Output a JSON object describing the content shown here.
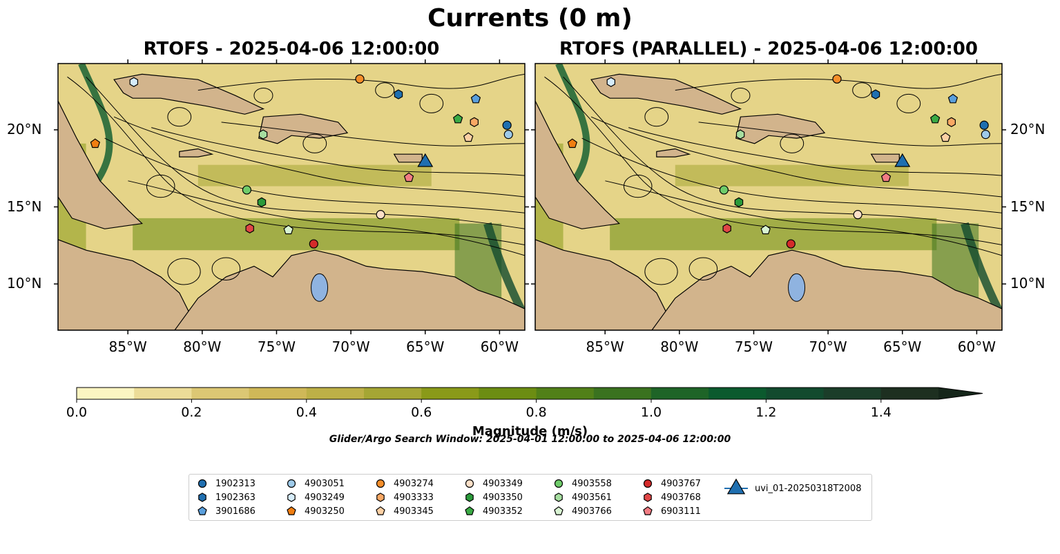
{
  "title": "Currents (0 m)",
  "panels": [
    {
      "title": "RTOFS - 2025-04-06 12:00:00"
    },
    {
      "title": "RTOFS (PARALLEL) - 2025-04-06 12:00:00"
    }
  ],
  "axes": {
    "lon_ticks": [
      "85°W",
      "80°W",
      "75°W",
      "70°W",
      "65°W",
      "60°W"
    ],
    "lat_ticks": [
      "20°N",
      "15°N",
      "10°N"
    ],
    "lon_values": [
      -85,
      -80,
      -75,
      -70,
      -65,
      -60
    ],
    "lat_values": [
      20,
      15,
      10
    ],
    "lon_range": [
      -89.7,
      -58.3
    ],
    "lat_range": [
      7.0,
      24.3
    ]
  },
  "colorbar": {
    "label": "Magnitude (m/s)",
    "ticks": [
      "0.0",
      "0.2",
      "0.4",
      "0.6",
      "0.8",
      "1.0",
      "1.2",
      "1.4"
    ],
    "tick_values": [
      0.0,
      0.2,
      0.4,
      0.6,
      0.8,
      1.0,
      1.2,
      1.4
    ],
    "range": [
      0,
      1.5
    ],
    "extend": "max",
    "colors": [
      "#fbf5c2",
      "#ecdc98",
      "#dcc774",
      "#cfb858",
      "#bdb047",
      "#a5a634",
      "#8a9a19",
      "#6c8d12",
      "#518018",
      "#3a721f",
      "#1e6427",
      "#0b5a2e",
      "#124a2e",
      "#1b3d29",
      "#1d2f20"
    ]
  },
  "search_window": "Glider/Argo Search Window: 2025-04-01 12:00:00 to 2025-04-06 12:00:00",
  "legend": [
    {
      "label": "1902313",
      "marker": "circle",
      "color": "#1f6fb0"
    },
    {
      "label": "1902363",
      "marker": "hexagon",
      "color": "#1f6fb0"
    },
    {
      "label": "3901686",
      "marker": "pentagon",
      "color": "#5a9fdc"
    },
    {
      "label": "4903051",
      "marker": "circle",
      "color": "#9ecae9"
    },
    {
      "label": "4903249",
      "marker": "hexagon",
      "color": "#d6ecfa"
    },
    {
      "label": "4903250",
      "marker": "pentagon",
      "color": "#f07e12"
    },
    {
      "label": "4903274",
      "marker": "circle",
      "color": "#f58e2a"
    },
    {
      "label": "4903333",
      "marker": "hexagon",
      "color": "#f9a864"
    },
    {
      "label": "4903345",
      "marker": "pentagon",
      "color": "#fcd0a4"
    },
    {
      "label": "4903349",
      "marker": "circle",
      "color": "#fde0c8"
    },
    {
      "label": "4903350",
      "marker": "hexagon",
      "color": "#2a9a3a"
    },
    {
      "label": "4903352",
      "marker": "pentagon",
      "color": "#3aaa45"
    },
    {
      "label": "4903558",
      "marker": "circle",
      "color": "#6fcc6a"
    },
    {
      "label": "4903561",
      "marker": "hexagon",
      "color": "#a6dea0"
    },
    {
      "label": "4903766",
      "marker": "pentagon",
      "color": "#d9f4d3"
    },
    {
      "label": "4903767",
      "marker": "circle",
      "color": "#d42a2a"
    },
    {
      "label": "4903768",
      "marker": "hexagon",
      "color": "#e04646"
    },
    {
      "label": "6903111",
      "marker": "pentagon",
      "color": "#f27c83"
    },
    {
      "label": "uvi_01-20250318T2008",
      "marker": "triangle-line",
      "color": "#1f6fb0"
    }
  ],
  "floats": [
    {
      "id": "1902313",
      "lon": -59.5,
      "lat": 20.3
    },
    {
      "id": "1902363",
      "lon": -66.8,
      "lat": 22.3
    },
    {
      "id": "3901686",
      "lon": -61.6,
      "lat": 22.0
    },
    {
      "id": "4903051",
      "lon": -59.4,
      "lat": 19.7
    },
    {
      "id": "4903249",
      "lon": -84.6,
      "lat": 23.1
    },
    {
      "id": "4903250",
      "lon": -87.2,
      "lat": 19.1
    },
    {
      "id": "4903274",
      "lon": -69.4,
      "lat": 23.3
    },
    {
      "id": "4903333",
      "lon": -61.7,
      "lat": 20.5
    },
    {
      "id": "4903345",
      "lon": -62.1,
      "lat": 19.5
    },
    {
      "id": "4903349",
      "lon": -68.0,
      "lat": 14.5
    },
    {
      "id": "4903350",
      "lon": -76.0,
      "lat": 15.3
    },
    {
      "id": "4903352",
      "lon": -62.8,
      "lat": 20.7
    },
    {
      "id": "4903558",
      "lon": -77.0,
      "lat": 16.1
    },
    {
      "id": "4903561",
      "lon": -75.9,
      "lat": 19.7
    },
    {
      "id": "4903766",
      "lon": -74.2,
      "lat": 13.5
    },
    {
      "id": "4903767",
      "lon": -72.5,
      "lat": 12.6
    },
    {
      "id": "4903768",
      "lon": -76.8,
      "lat": 13.6
    },
    {
      "id": "6903111",
      "lon": -66.1,
      "lat": 16.9
    },
    {
      "id": "uvi_01-20250318T2008",
      "lon": -65.0,
      "lat": 18.0
    }
  ]
}
